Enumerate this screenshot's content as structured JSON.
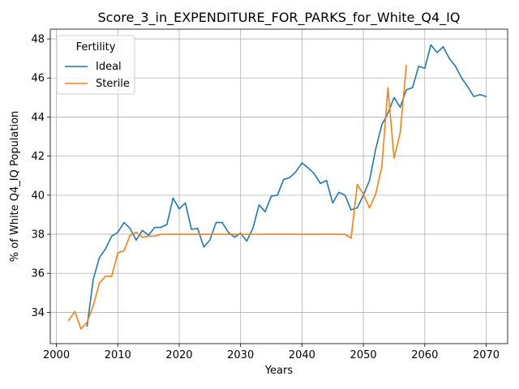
{
  "chart_data": {
    "type": "line",
    "title": "Score_3_in_EXPENDITURE_FOR_PARKS_for_White_Q4_IQ",
    "xlabel": "Years",
    "ylabel": "% of White Q4_IQ Population",
    "xlim": [
      1999,
      2073.5
    ],
    "ylim": [
      32.4,
      48.5
    ],
    "xticks": [
      2000,
      2010,
      2020,
      2030,
      2040,
      2050,
      2060,
      2070
    ],
    "yticks": [
      34,
      36,
      38,
      40,
      42,
      44,
      46,
      48
    ],
    "xtick_labels": [
      "2000",
      "2010",
      "2020",
      "2030",
      "2040",
      "2050",
      "2060",
      "2070"
    ],
    "ytick_labels": [
      "34",
      "36",
      "38",
      "40",
      "42",
      "44",
      "46",
      "48"
    ],
    "grid": true,
    "legend": {
      "title": "Fertility",
      "placement": "top-left"
    },
    "series": [
      {
        "name": "Ideal",
        "color": "#1f77b4",
        "x": [
          2005,
          2006,
          2007,
          2008,
          2009,
          2010,
          2011,
          2012,
          2013,
          2014,
          2015,
          2016,
          2017,
          2018,
          2019,
          2020,
          2021,
          2022,
          2023,
          2024,
          2025,
          2026,
          2027,
          2028,
          2029,
          2030,
          2031,
          2032,
          2033,
          2034,
          2035,
          2036,
          2037,
          2038,
          2039,
          2040,
          2041,
          2042,
          2043,
          2044,
          2045,
          2046,
          2047,
          2048,
          2049,
          2050,
          2051,
          2052,
          2053,
          2054,
          2055,
          2056,
          2057,
          2058,
          2059,
          2060,
          2061,
          2062,
          2063,
          2064,
          2065,
          2066,
          2067,
          2068,
          2069,
          2070
        ],
        "values": [
          33.3,
          35.7,
          36.8,
          37.25,
          37.9,
          38.1,
          38.6,
          38.3,
          37.7,
          38.2,
          37.95,
          38.35,
          38.35,
          38.5,
          39.85,
          39.3,
          39.6,
          38.25,
          38.3,
          37.35,
          37.7,
          38.6,
          38.6,
          38.1,
          37.85,
          38.05,
          37.65,
          38.3,
          39.5,
          39.15,
          39.95,
          40.0,
          40.8,
          40.9,
          41.2,
          41.65,
          41.4,
          41.1,
          40.6,
          40.75,
          39.6,
          40.15,
          40.0,
          39.25,
          39.35,
          40.0,
          40.75,
          42.35,
          43.6,
          44.2,
          45.0,
          44.5,
          45.4,
          45.5,
          46.6,
          46.5,
          47.7,
          47.3,
          47.6,
          47.0,
          46.6,
          46.0,
          45.55,
          45.05,
          45.15,
          45.05
        ]
      },
      {
        "name": "Sterile",
        "color": "#ff7f0e",
        "x": [
          2002,
          2003,
          2004,
          2005,
          2006,
          2007,
          2008,
          2009,
          2010,
          2011,
          2012,
          2013,
          2014,
          2015,
          2016,
          2017,
          2018,
          2019,
          2020,
          2021,
          2022,
          2023,
          2024,
          2025,
          2026,
          2027,
          2028,
          2029,
          2030,
          2031,
          2032,
          2033,
          2034,
          2035,
          2036,
          2037,
          2038,
          2039,
          2040,
          2041,
          2042,
          2043,
          2044,
          2045,
          2046,
          2047,
          2048,
          2049,
          2050,
          2051,
          2052,
          2053,
          2054,
          2055,
          2056,
          2057
        ],
        "values": [
          33.6,
          34.05,
          33.15,
          33.5,
          34.35,
          35.5,
          35.85,
          35.85,
          37.05,
          37.15,
          37.95,
          38.1,
          37.85,
          37.9,
          37.9,
          38.0,
          38.0,
          38.0,
          38.0,
          38.0,
          38.0,
          38.0,
          38.0,
          38.0,
          38.0,
          38.0,
          38.0,
          38.0,
          38.0,
          38.0,
          38.0,
          38.0,
          38.0,
          38.0,
          38.0,
          38.0,
          38.0,
          38.0,
          38.0,
          38.0,
          38.0,
          38.0,
          38.0,
          38.0,
          38.0,
          38.0,
          37.8,
          40.55,
          40.05,
          39.35,
          40.05,
          41.45,
          45.5,
          41.9,
          43.2,
          46.65
        ]
      }
    ]
  }
}
